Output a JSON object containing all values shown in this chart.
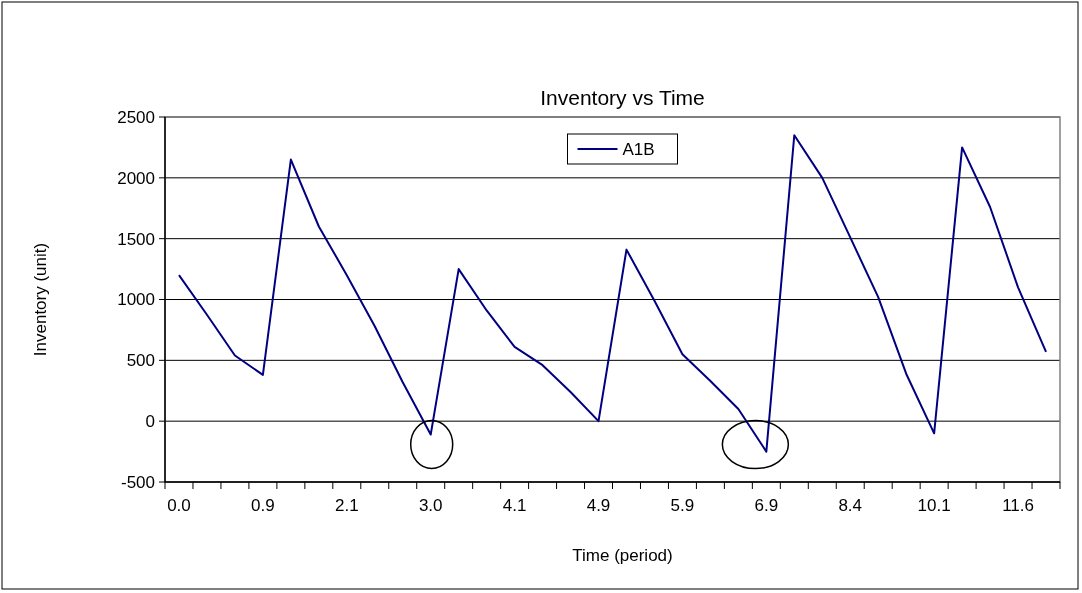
{
  "chart_data": {
    "type": "line",
    "title": "Inventory vs Time",
    "xlabel": "Time (period)",
    "ylabel": "Inventory (unit)",
    "categories": [
      "0.0",
      null,
      null,
      "0.9",
      null,
      null,
      "2.1",
      null,
      null,
      "3.0",
      null,
      null,
      "4.1",
      null,
      null,
      "4.9",
      null,
      null,
      "5.9",
      null,
      null,
      "6.9",
      null,
      null,
      "8.4",
      null,
      null,
      "10.1",
      null,
      null,
      "11.6",
      null
    ],
    "series": [
      {
        "name": "A1B",
        "color": "#000080",
        "values": [
          1200,
          875,
          540,
          380,
          2150,
          1600,
          1200,
          780,
          320,
          -110,
          1250,
          910,
          610,
          460,
          240,
          0,
          1410,
          990,
          550,
          330,
          100,
          -250,
          2350,
          2000,
          1510,
          1020,
          390,
          -100,
          2250,
          1760,
          1100,
          570
        ]
      }
    ],
    "ylim": [
      -500,
      2500
    ],
    "yticks": [
      -500,
      0,
      500,
      1000,
      1500,
      2000,
      2500
    ],
    "grid": "y",
    "legend": "top",
    "marker": "none",
    "line_style": "solid"
  }
}
